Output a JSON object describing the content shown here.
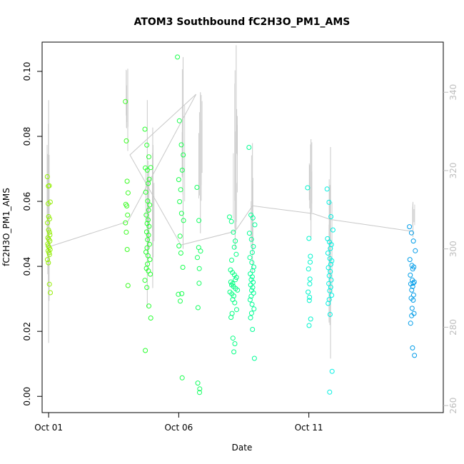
{
  "chart_data": {
    "type": "scatter",
    "title": "ATOM3 Southbound fC2H3O_PM1_AMS",
    "xlabel": "Date",
    "ylabel": "fC2H3O_PM1_AMS",
    "x_ticks": [
      "Oct 01",
      "Oct 06",
      "Oct 11"
    ],
    "y_ticks": [
      "0.00",
      "0.02",
      "0.04",
      "0.06",
      "0.08",
      "0.10"
    ],
    "y_right_ticks": [
      "260",
      "280",
      "300",
      "320",
      "340"
    ],
    "xlim": [
      "2017-09-30T18:00",
      "2017-10-16T04:00"
    ],
    "ylim": [
      -0.005,
      0.109
    ],
    "y_right_lim": [
      258.2,
      352.8
    ],
    "grid": false,
    "legend": "none",
    "right_axis_color": "#bebebe",
    "trace_color": "#c8c8c8",
    "series": [
      {
        "date": "2017-10-01",
        "hours": [
          0.0,
          0.1,
          0.2,
          0.3,
          0.4
        ],
        "values": [
          0.0676,
          0.0647,
          0.0648,
          0.0598,
          0.0593,
          0.0553,
          0.0546,
          0.0534,
          0.0512,
          0.0505,
          0.0497,
          0.0488,
          0.0483,
          0.0478,
          0.0469,
          0.0463,
          0.0458,
          0.0452,
          0.0448,
          0.0442,
          0.0436,
          0.0421,
          0.0411,
          0.0345,
          0.0319
        ]
      },
      {
        "date": "2017-10-04",
        "hours": [
          0.0,
          0.1
        ],
        "values": [
          0.0907,
          0.0786,
          0.0662,
          0.0626,
          0.0591,
          0.0586,
          0.0558,
          0.0534,
          0.0505,
          0.0452,
          0.0341
        ]
      },
      {
        "date": "2017-10-04",
        "hours": [
          18.0,
          19.0,
          20.0,
          21.0
        ],
        "values": [
          0.0822,
          0.0773,
          0.0737,
          0.0704,
          0.0703,
          0.0696,
          0.0668,
          0.0655,
          0.0628,
          0.0601,
          0.0589,
          0.0573,
          0.0558,
          0.0543,
          0.0532,
          0.0523,
          0.0506,
          0.0496,
          0.0482,
          0.0468,
          0.0457,
          0.0444,
          0.0433,
          0.0421,
          0.0407,
          0.0394,
          0.0386,
          0.0376,
          0.0357,
          0.0335,
          0.0278,
          0.0241,
          0.0141
        ]
      },
      {
        "date": "2017-10-06",
        "hours": [
          0.0,
          1.0,
          2.0,
          3.0,
          4.0
        ],
        "values": [
          0.1044,
          0.0848,
          0.0774,
          0.0743,
          0.0696,
          0.0667,
          0.0636,
          0.0599,
          0.0563,
          0.0541,
          0.0493,
          0.0463,
          0.0441,
          0.0397,
          0.0316,
          0.0314,
          0.0293,
          0.0057
        ]
      },
      {
        "date": "2017-10-06",
        "hours": [
          18.0,
          19.0
        ],
        "values": [
          0.0643,
          0.0541,
          0.0458,
          0.0447,
          0.0427,
          0.0393,
          0.0348,
          0.0273,
          0.0041,
          0.0023,
          0.0012
        ]
      },
      {
        "date": "2017-10-08",
        "hours": [
          0.0,
          1.0,
          2.0,
          3.0,
          4.0,
          5.0
        ],
        "values": [
          0.0552,
          0.0538,
          0.0505,
          0.0478,
          0.0459,
          0.0437,
          0.0419,
          0.0389,
          0.0381,
          0.0374,
          0.0366,
          0.0359,
          0.0352,
          0.0347,
          0.0343,
          0.0338,
          0.0332,
          0.0327,
          0.0321,
          0.0315,
          0.0309,
          0.0298,
          0.0288,
          0.0267,
          0.0255,
          0.0243,
          0.0179,
          0.0162,
          0.0137
        ]
      },
      {
        "date": "2017-10-08",
        "hours": [
          18.0,
          19.0,
          20.0,
          21.0
        ],
        "values": [
          0.0766,
          0.0558,
          0.0549,
          0.0528,
          0.0502,
          0.0483,
          0.0461,
          0.0443,
          0.0427,
          0.0412,
          0.0398,
          0.0387,
          0.0377,
          0.0368,
          0.0359,
          0.0351,
          0.0343,
          0.0335,
          0.0326,
          0.0318,
          0.0308,
          0.0297,
          0.0283,
          0.0269,
          0.0256,
          0.0242,
          0.0206,
          0.0117
        ]
      },
      {
        "date": "2017-10-11",
        "hours": [
          0.0,
          0.5,
          1.0
        ],
        "values": [
          0.0642,
          0.0486,
          0.0431,
          0.0413,
          0.0392,
          0.0361,
          0.0346,
          0.0321,
          0.0305,
          0.0295,
          0.0238,
          0.0218
        ]
      },
      {
        "date": "2017-10-11",
        "hours": [
          18.0,
          19.0,
          20.0,
          21.0
        ],
        "values": [
          0.0638,
          0.0597,
          0.0553,
          0.0512,
          0.0485,
          0.0475,
          0.0467,
          0.0455,
          0.0441,
          0.0424,
          0.0417,
          0.0406,
          0.0396,
          0.0384,
          0.0371,
          0.0358,
          0.0347,
          0.0336,
          0.0325,
          0.0311,
          0.0298,
          0.0286,
          0.0252,
          0.0077,
          0.0013
        ]
      },
      {
        "date": "2017-10-14",
        "hours": [
          22.0,
          23.0,
          24.0,
          25.0
        ],
        "values": [
          0.0522,
          0.0503,
          0.0478,
          0.0448,
          0.0421,
          0.0403,
          0.0398,
          0.0392,
          0.0373,
          0.0358,
          0.0352,
          0.0348,
          0.0346,
          0.0338,
          0.0327,
          0.0312,
          0.0302,
          0.0296,
          0.0271,
          0.0255,
          0.0248,
          0.0225,
          0.0149,
          0.0126
        ]
      }
    ],
    "right_axis_trace": {
      "name": "",
      "x": [
        "2017-10-01T00:00",
        "2017-10-04T01:00",
        "2017-10-06T16:00",
        "2017-10-04T03:00",
        "2017-10-06T02:00",
        "2017-10-08T04:00",
        "2017-10-08T20:00",
        "2017-10-11T04:00",
        "2017-10-11T20:00",
        "2017-10-14T23:00"
      ],
      "y": [
        300.5,
        307,
        339.5,
        324,
        301,
        304.5,
        311,
        309,
        307.5,
        304.5
      ],
      "spikes": [
        {
          "x": "2017-10-01T00:00",
          "from": 276,
          "to": 338
        },
        {
          "x": "2017-10-04T01:00",
          "from": 325,
          "to": 346
        },
        {
          "x": "2017-10-04T19:00",
          "from": 285,
          "to": 338
        },
        {
          "x": "2017-10-05T00:00",
          "from": 290,
          "to": 331
        },
        {
          "x": "2017-10-06T04:00",
          "from": 300,
          "to": 349
        },
        {
          "x": "2017-10-06T20:00",
          "from": 304,
          "to": 340
        },
        {
          "x": "2017-10-08T04:00",
          "from": 300,
          "to": 330
        },
        {
          "x": "2017-10-08T05:00",
          "from": 305,
          "to": 352
        },
        {
          "x": "2017-10-08T20:00",
          "from": 294,
          "to": 327
        },
        {
          "x": "2017-10-11T02:00",
          "from": 303,
          "to": 328
        },
        {
          "x": "2017-10-11T20:00",
          "from": 272,
          "to": 326
        },
        {
          "x": "2017-10-15T00:00",
          "from": 303,
          "to": 312
        }
      ]
    }
  }
}
